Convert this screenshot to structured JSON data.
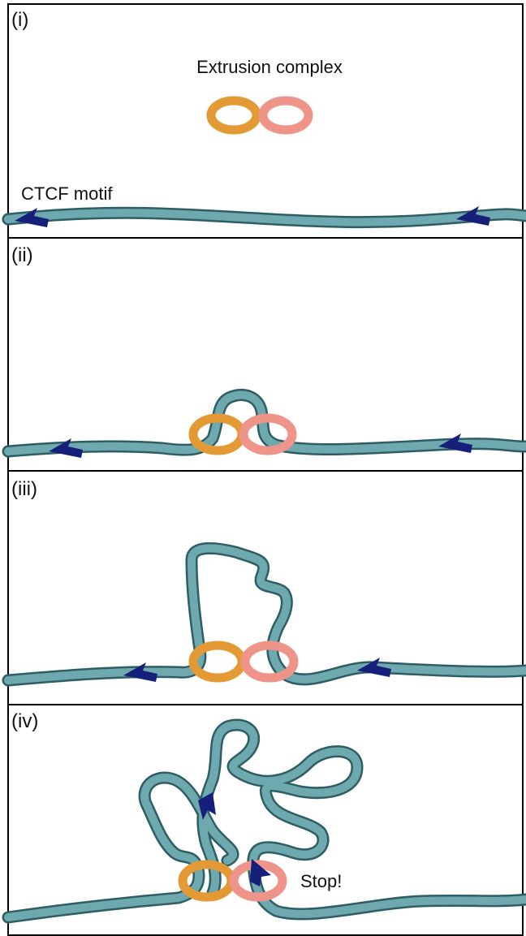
{
  "panels": [
    {
      "label": "(i)",
      "complex_label": "Extrusion complex",
      "motif_label": "CTCF motif"
    },
    {
      "label": "(ii)"
    },
    {
      "label": "(iii)"
    },
    {
      "label": "(iv)",
      "stop_label": "Stop!"
    }
  ]
}
